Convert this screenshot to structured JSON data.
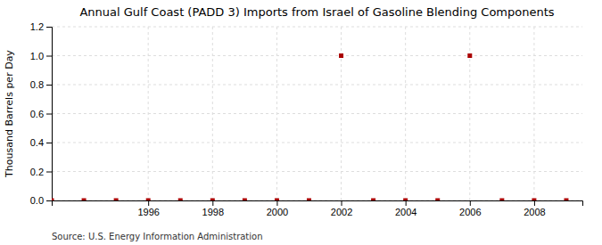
{
  "chart_data": {
    "type": "scatter",
    "title": "Annual Gulf Coast (PADD 3) Imports from Israel of Gasoline Blending Components",
    "ylabel": "Thousand Barrels per Day",
    "source": "Source: U.S. Energy Information Administration",
    "x": [
      1993,
      1994,
      1995,
      1996,
      1997,
      1998,
      1999,
      2000,
      2001,
      2002,
      2003,
      2004,
      2005,
      2006,
      2007,
      2008,
      2009
    ],
    "values": [
      0,
      0,
      0,
      0,
      0,
      0,
      0,
      0,
      0,
      1.0,
      0,
      0,
      0,
      1.0,
      0,
      0,
      0
    ],
    "color": "#aa0000",
    "marker": "square",
    "xlim": [
      1993.0,
      2009.5
    ],
    "ylim": [
      0,
      1.2
    ],
    "xticks": [
      1996,
      1998,
      2000,
      2002,
      2004,
      2006,
      2008
    ],
    "yticks": [
      {
        "value": 0.0,
        "label": "0.0"
      },
      0.2,
      0.4,
      0.6,
      0.8,
      {
        "value": 1.0,
        "label": "1.0"
      },
      1.2
    ],
    "grid": true
  }
}
